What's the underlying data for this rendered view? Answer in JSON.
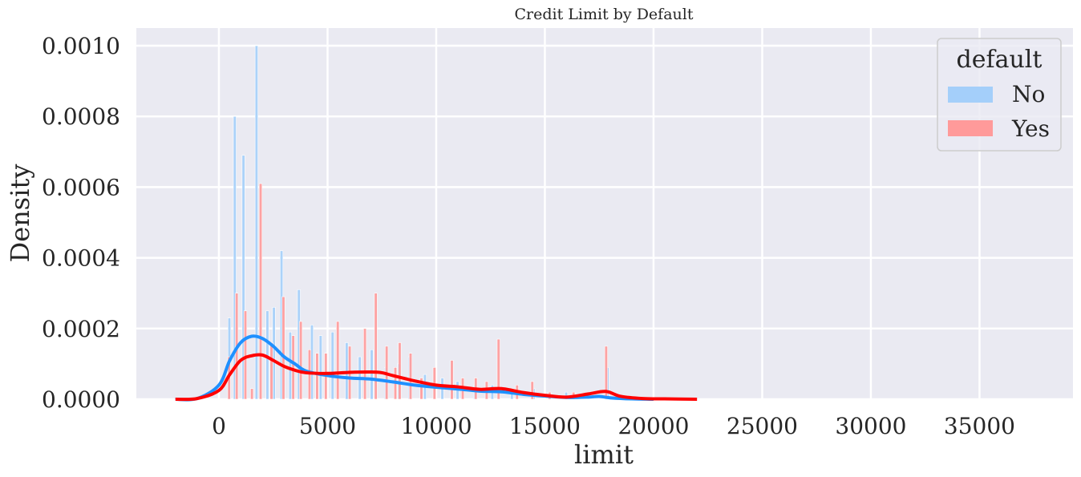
{
  "chart_data": {
    "type": "histogram+kde",
    "title": "Credit Limit by Default",
    "xlabel": "limit",
    "ylabel": "Density",
    "xlim": [
      -3800,
      39300
    ],
    "ylim": [
      0,
      0.00105
    ],
    "xticks": [
      0,
      5000,
      10000,
      15000,
      20000,
      25000,
      30000,
      35000
    ],
    "xtick_labels": [
      "0",
      "5000",
      "10000",
      "15000",
      "20000",
      "25000",
      "30000",
      "35000"
    ],
    "yticks": [
      0,
      0.0002,
      0.0004,
      0.0006,
      0.0008,
      0.001
    ],
    "ytick_labels": [
      "0.0000",
      "0.0002",
      "0.0004",
      "0.0006",
      "0.0008",
      "0.0010"
    ],
    "grid": true,
    "background_color": "#EAEAF2",
    "legend": {
      "title": "default",
      "placement": "upper right",
      "entries": [
        {
          "label": "No",
          "color": "#A4CFFA"
        },
        {
          "label": "Yes",
          "color": "#FF9A9A"
        }
      ]
    },
    "bin_width": 130,
    "series": [
      {
        "name": "No",
        "bar_color": "#A4CFFA",
        "line_color": "#1E90FF",
        "bars": [
          {
            "x": 500,
            "y": 0.00023
          },
          {
            "x": 750,
            "y": 0.0008
          },
          {
            "x": 1150,
            "y": 0.00069
          },
          {
            "x": 1750,
            "y": 0.001
          },
          {
            "x": 2250,
            "y": 0.00025
          },
          {
            "x": 2550,
            "y": 0.00026
          },
          {
            "x": 2900,
            "y": 0.00042
          },
          {
            "x": 3300,
            "y": 0.00019
          },
          {
            "x": 3700,
            "y": 0.00031
          },
          {
            "x": 4300,
            "y": 0.00021
          },
          {
            "x": 4700,
            "y": 0.00018
          },
          {
            "x": 5250,
            "y": 0.00019
          },
          {
            "x": 5900,
            "y": 0.00016
          },
          {
            "x": 6500,
            "y": 0.00012
          },
          {
            "x": 7050,
            "y": 0.00014
          },
          {
            "x": 7700,
            "y": 9e-05
          },
          {
            "x": 8300,
            "y": 0.0001
          },
          {
            "x": 8800,
            "y": 0.00012
          },
          {
            "x": 9500,
            "y": 7e-05
          },
          {
            "x": 10300,
            "y": 6e-05
          },
          {
            "x": 11000,
            "y": 5e-05
          },
          {
            "x": 11800,
            "y": 4e-05
          },
          {
            "x": 12600,
            "y": 4e-05
          },
          {
            "x": 13500,
            "y": 3e-05
          },
          {
            "x": 14500,
            "y": 3e-05
          },
          {
            "x": 16000,
            "y": 2e-05
          },
          {
            "x": 17900,
            "y": 9e-05
          }
        ],
        "kde_x": [
          -2000,
          -1000,
          0,
          500,
          1000,
          1500,
          2000,
          2500,
          3000,
          3500,
          4000,
          5000,
          6000,
          7000,
          8000,
          9000,
          10000,
          11000,
          12000,
          13000,
          14000,
          15000,
          16000,
          17000,
          17500,
          18000,
          19000,
          20000
        ],
        "kde_y": [
          0,
          2e-06,
          4e-05,
          0.00011,
          0.00016,
          0.000178,
          0.000172,
          0.00015,
          0.00012,
          0.0001,
          8e-05,
          6.7e-05,
          6e-05,
          5.7e-05,
          4.9e-05,
          4e-05,
          3.4e-05,
          2.9e-05,
          2.3e-05,
          2.1e-05,
          1.4e-05,
          9e-06,
          5e-06,
          6e-06,
          8e-06,
          4e-06,
          1e-06,
          0
        ]
      },
      {
        "name": "Yes",
        "bar_color": "#FF9A9A",
        "line_color": "#FF0000",
        "bars": [
          {
            "x": 450,
            "y": 0.00012
          },
          {
            "x": 800,
            "y": 0.0003
          },
          {
            "x": 1200,
            "y": 0.00025
          },
          {
            "x": 1500,
            "y": 3e-05
          },
          {
            "x": 1900,
            "y": 0.00061
          },
          {
            "x": 2400,
            "y": 0.00016
          },
          {
            "x": 2950,
            "y": 0.00029
          },
          {
            "x": 3400,
            "y": 0.00018
          },
          {
            "x": 3750,
            "y": 0.00022
          },
          {
            "x": 4150,
            "y": 0.00014
          },
          {
            "x": 4500,
            "y": 0.00013
          },
          {
            "x": 4900,
            "y": 0.00013
          },
          {
            "x": 5450,
            "y": 0.00022
          },
          {
            "x": 6000,
            "y": 0.00015
          },
          {
            "x": 6700,
            "y": 0.0002
          },
          {
            "x": 7200,
            "y": 0.0003
          },
          {
            "x": 7700,
            "y": 0.00015
          },
          {
            "x": 8100,
            "y": 9e-05
          },
          {
            "x": 8300,
            "y": 0.00016
          },
          {
            "x": 8800,
            "y": 0.00013
          },
          {
            "x": 9300,
            "y": 6e-05
          },
          {
            "x": 9900,
            "y": 9e-05
          },
          {
            "x": 10700,
            "y": 0.00011
          },
          {
            "x": 11200,
            "y": 6e-05
          },
          {
            "x": 11800,
            "y": 6e-05
          },
          {
            "x": 12300,
            "y": 5e-05
          },
          {
            "x": 12850,
            "y": 0.00017
          },
          {
            "x": 13700,
            "y": 4e-05
          },
          {
            "x": 14400,
            "y": 5e-05
          },
          {
            "x": 15200,
            "y": 2e-05
          },
          {
            "x": 16300,
            "y": 2e-05
          },
          {
            "x": 17800,
            "y": 0.00015
          }
        ],
        "kde_x": [
          -2000,
          -1000,
          0,
          500,
          1000,
          1500,
          2000,
          2500,
          3000,
          3500,
          4000,
          5000,
          6000,
          7000,
          7500,
          8000,
          9000,
          10000,
          11000,
          12000,
          13000,
          14000,
          15000,
          16000,
          17000,
          17800,
          18500,
          19500,
          20500,
          22000
        ],
        "kde_y": [
          0,
          2e-06,
          2.5e-05,
          7e-05,
          0.00011,
          0.000123,
          0.000125,
          0.00011,
          9.3e-05,
          8.2e-05,
          7.5e-05,
          7.3e-05,
          7.6e-05,
          7.7e-05,
          7.5e-05,
          6.7e-05,
          5.2e-05,
          4e-05,
          3.5e-05,
          2.8e-05,
          3e-05,
          1.9e-05,
          1.1e-05,
          6e-06,
          1.5e-05,
          2.2e-05,
          8e-06,
          2e-06,
          1e-06,
          0
        ]
      }
    ]
  }
}
